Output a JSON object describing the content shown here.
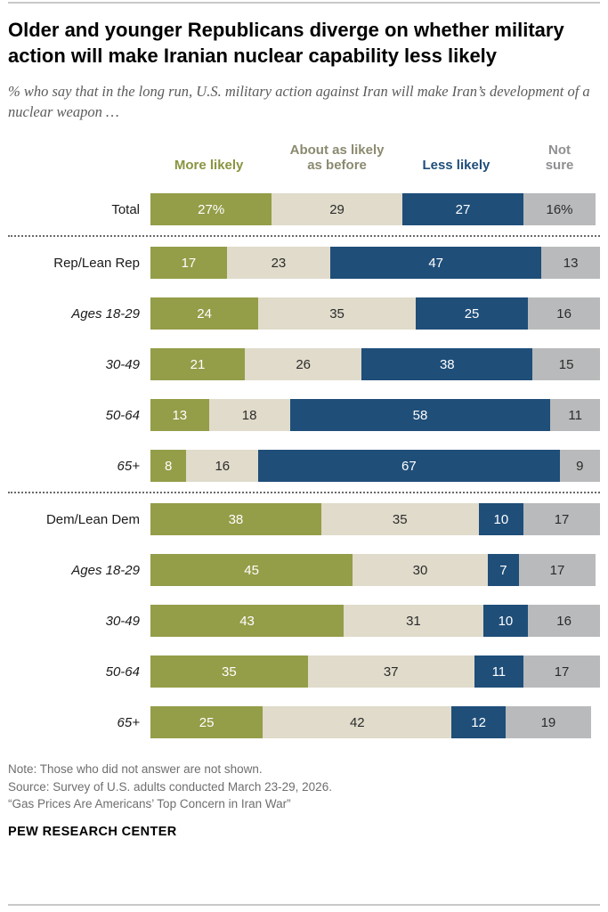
{
  "page": {
    "title": "Older and younger Republicans diverge on whether military action will make Iranian nuclear capability less likely",
    "subtitle": "% who say that in the long run, U.S. military action against Iran will make Iran’s development of a nuclear weapon …",
    "notes": {
      "line1": "Note: Those who did not answer are not shown.",
      "line2": "Source: Survey of U.S. adults conducted March 23-29, 2026.",
      "line3": "“Gas Prices Are Americans’ Top Concern in Iran War”"
    },
    "footer": "PEW RESEARCH CENTER"
  },
  "chart_data": {
    "type": "bar",
    "variant": "horizontal-stacked",
    "scale_max": 100,
    "legend": [
      "More likely",
      "About as likely as before",
      "Less likely",
      "Not sure"
    ],
    "legend_colors": [
      "#8a9440",
      "#8b8a70",
      "#1f4e79",
      "#8f9093"
    ],
    "series_keys": [
      "more-likely",
      "about-as-likely-as-before",
      "less-likely",
      "not-sure"
    ],
    "colors": [
      "#949d48",
      "#e0dbca",
      "#1f4e79",
      "#b9babb"
    ],
    "text_colors": [
      "#ffffff",
      "#2b2b2b",
      "#ffffff",
      "#2b2b2b"
    ],
    "rows": [
      {
        "label": "Total",
        "italic": false,
        "values": [
          27,
          29,
          27,
          16
        ],
        "value_labels": [
          "27%",
          "29",
          "27",
          "16%"
        ]
      },
      {
        "divider": true
      },
      {
        "label": "Rep/Lean Rep",
        "italic": false,
        "values": [
          17,
          23,
          47,
          13
        ]
      },
      {
        "label": "Ages 18-29",
        "italic": true,
        "values": [
          24,
          35,
          25,
          16
        ]
      },
      {
        "label": "30-49",
        "italic": true,
        "values": [
          21,
          26,
          38,
          15
        ]
      },
      {
        "label": "50-64",
        "italic": true,
        "values": [
          13,
          18,
          58,
          11
        ]
      },
      {
        "label": "65+",
        "italic": true,
        "values": [
          8,
          16,
          67,
          9
        ]
      },
      {
        "divider": true
      },
      {
        "label": "Dem/Lean Dem",
        "italic": false,
        "values": [
          38,
          35,
          10,
          17
        ]
      },
      {
        "label": "Ages 18-29",
        "italic": true,
        "values": [
          45,
          30,
          7,
          17
        ]
      },
      {
        "label": "30-49",
        "italic": true,
        "values": [
          43,
          31,
          10,
          16
        ]
      },
      {
        "label": "50-64",
        "italic": true,
        "values": [
          35,
          37,
          11,
          17
        ]
      },
      {
        "label": "65+",
        "italic": true,
        "values": [
          25,
          42,
          12,
          19
        ]
      }
    ]
  }
}
